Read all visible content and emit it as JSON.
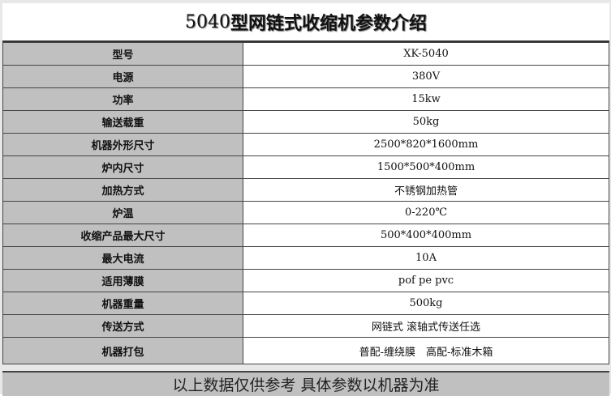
{
  "title_num": "5040",
  "title_text": "型网链式收缩机参数介绍",
  "rows": [
    {
      "label": "型号",
      "value": "XK-5040"
    },
    {
      "label": "电源",
      "value": "380V"
    },
    {
      "label": "功率",
      "value": "15kw"
    },
    {
      "label": "输送载重",
      "value": "50kg"
    },
    {
      "label": "机器外形尺寸",
      "value": "2500*820*1600mm"
    },
    {
      "label": "炉内尺寸",
      "value": "1500*500*400mm"
    },
    {
      "label": "加热方式",
      "value": "不锈钢加热管"
    },
    {
      "label": "炉温",
      "value": "0-220℃"
    },
    {
      "label": "收缩产品最大尺寸",
      "value": "500*400*400mm"
    },
    {
      "label": "最大电流",
      "value": "10A"
    },
    {
      "label": "适用薄膜",
      "value": "pof pe pvc"
    },
    {
      "label": "机器重量",
      "value": "500kg"
    },
    {
      "label": "传送方式",
      "value": "网链式 滚轴式传送任选"
    },
    {
      "label": "机器打包",
      "value": "普配-缠绕膜　高配-标准木箱"
    }
  ],
  "footer": "以上数据仅供参考 具体参数以机器为准"
}
